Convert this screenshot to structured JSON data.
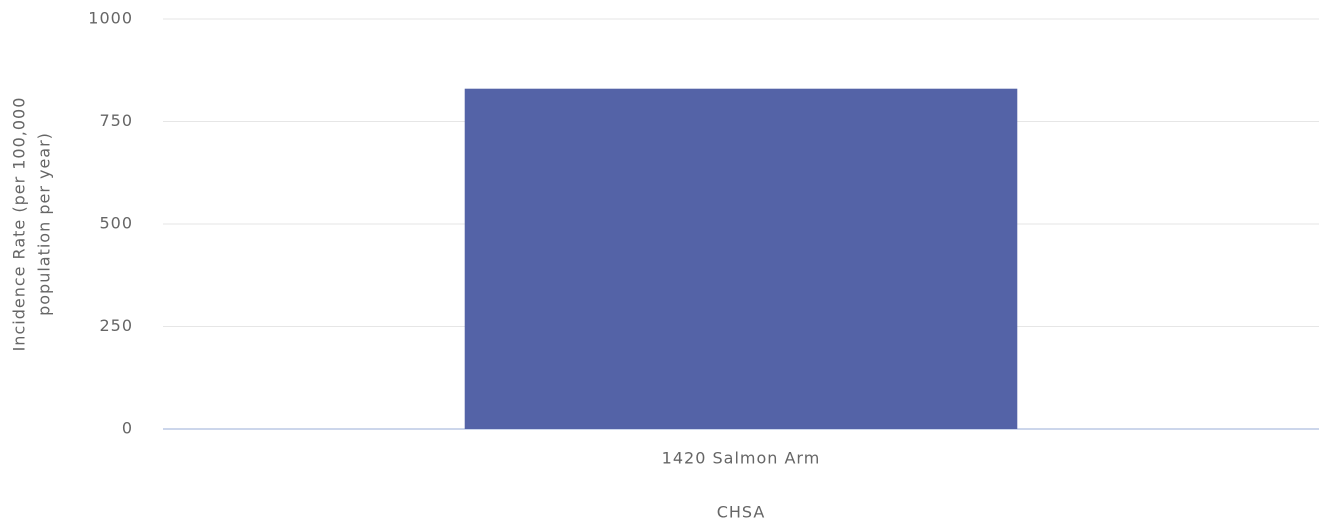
{
  "chart_data": {
    "type": "bar",
    "categories": [
      "1420 Salmon Arm"
    ],
    "values": [
      830
    ],
    "color": "#5463a7",
    "xlabel": "CHSA",
    "ylabel": [
      "Incidence Rate (per 100,000",
      "population per year)"
    ],
    "ylim": [
      0,
      1000
    ],
    "yticks": [
      0,
      250,
      500,
      750,
      1000
    ],
    "grid": true
  }
}
